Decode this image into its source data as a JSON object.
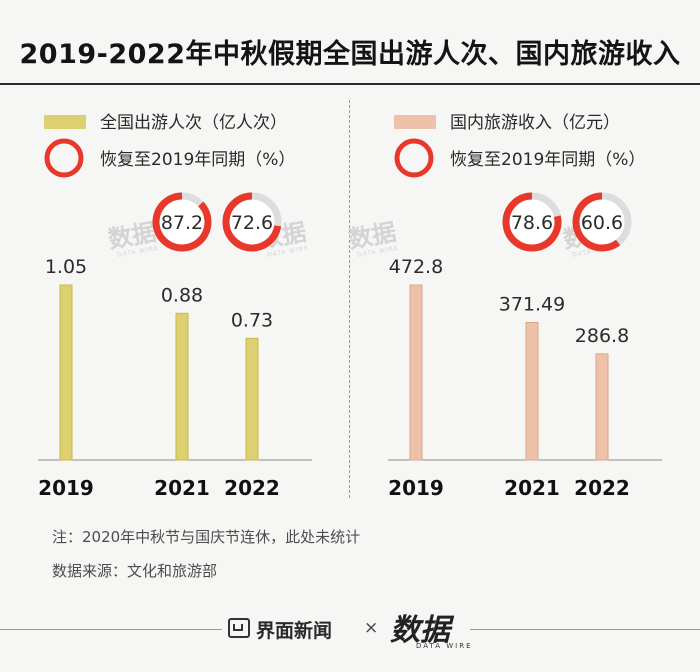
{
  "title": "2019-2022年中秋假期全国出游人次、国内旅游收入",
  "watermark": "数据",
  "watermark_sub": "DATA WIRE",
  "chart_data": [
    {
      "type": "bar",
      "categories": [
        "2019",
        "2021",
        "2022"
      ],
      "bar_legend": "全国出游人次（亿人次）",
      "ring_legend": "恢复至2019年同期（%）",
      "values": [
        1.05,
        0.88,
        0.73
      ],
      "value_labels": [
        "1.05",
        "0.88",
        "0.73"
      ],
      "recovery_pct": [
        null,
        87.2,
        72.6
      ],
      "recovery_labels": [
        null,
        "87.2",
        "72.6"
      ],
      "bar_color": "#ddd070",
      "bar_stroke": "#c9bb4a",
      "ring_color": "#e8382b",
      "ring_track_color": "#dddddd"
    },
    {
      "type": "bar",
      "categories": [
        "2019",
        "2021",
        "2022"
      ],
      "bar_legend": "国内旅游收入（亿元）",
      "ring_legend": "恢复至2019年同期（%）",
      "values": [
        472.8,
        371.49,
        286.8
      ],
      "value_labels": [
        "472.8",
        "371.49",
        "286.8"
      ],
      "recovery_pct": [
        null,
        78.6,
        60.6
      ],
      "recovery_labels": [
        null,
        "78.6",
        "60.6"
      ],
      "bar_color": "#edc2a8",
      "bar_stroke": "#d9a88a",
      "ring_color": "#e8382b",
      "ring_track_color": "#dddddd"
    }
  ],
  "notes": {
    "line1": "注：2020年中秋节与国庆节连休，此处未统计",
    "line2": "数据来源：文化和旅游部"
  },
  "footer": {
    "brand": "界面新闻",
    "separator": "×",
    "partner": "数据",
    "partner_sub": "DATA WIRE"
  }
}
